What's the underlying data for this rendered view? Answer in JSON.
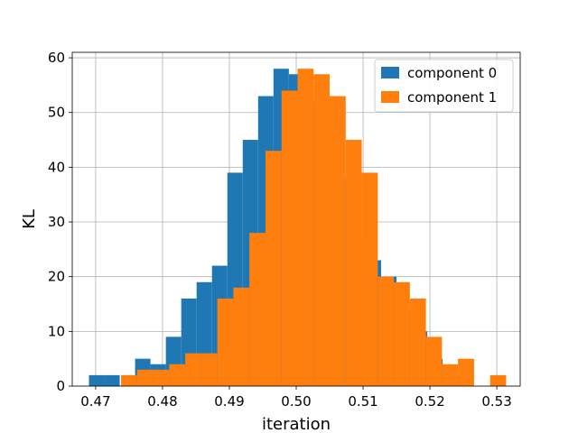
{
  "chart_data": {
    "type": "bar",
    "subtype": "overlapping histogram",
    "title": "",
    "xlabel": "iteration",
    "ylabel": "KL",
    "xlim": [
      0.4665,
      0.5335
    ],
    "ylim": [
      0,
      61
    ],
    "xticks": [
      "0.47",
      "0.48",
      "0.49",
      "0.50",
      "0.51",
      "0.52",
      "0.53"
    ],
    "yticks": [
      "0",
      "10",
      "20",
      "30",
      "40",
      "50",
      "60"
    ],
    "grid": true,
    "legend_position": "top-right",
    "series": [
      {
        "name": "component 0",
        "color": "#1f77b4",
        "bin_edges": [
          0.469,
          0.4713,
          0.4736,
          0.4759,
          0.4782,
          0.4805,
          0.4828,
          0.4851,
          0.4874,
          0.4897,
          0.492,
          0.4943,
          0.4966,
          0.4989,
          0.5012,
          0.5035,
          0.5058,
          0.5081,
          0.5104,
          0.5127,
          0.515,
          0.5173,
          0.5196,
          0.5219,
          0.5242,
          0.5265
        ],
        "counts": [
          2,
          2,
          0,
          5,
          4,
          9,
          16,
          19,
          22,
          39,
          45,
          53,
          58,
          57,
          52,
          45,
          38,
          27,
          23,
          20,
          14,
          10,
          5,
          3,
          2
        ]
      },
      {
        "name": "component 1",
        "color": "#ff7f0e",
        "bin_edges": [
          0.4738,
          0.4762,
          0.4786,
          0.481,
          0.4834,
          0.4858,
          0.4882,
          0.4906,
          0.493,
          0.4954,
          0.4978,
          0.5002,
          0.5026,
          0.505,
          0.5074,
          0.5098,
          0.5122,
          0.5146,
          0.517,
          0.5194,
          0.5218,
          0.5242,
          0.5266,
          0.529,
          0.5314
        ],
        "counts": [
          2,
          3,
          3,
          4,
          6,
          6,
          16,
          18,
          28,
          43,
          54,
          58,
          57,
          53,
          45,
          39,
          20,
          19,
          16,
          9,
          4,
          5,
          0,
          2
        ]
      }
    ]
  }
}
